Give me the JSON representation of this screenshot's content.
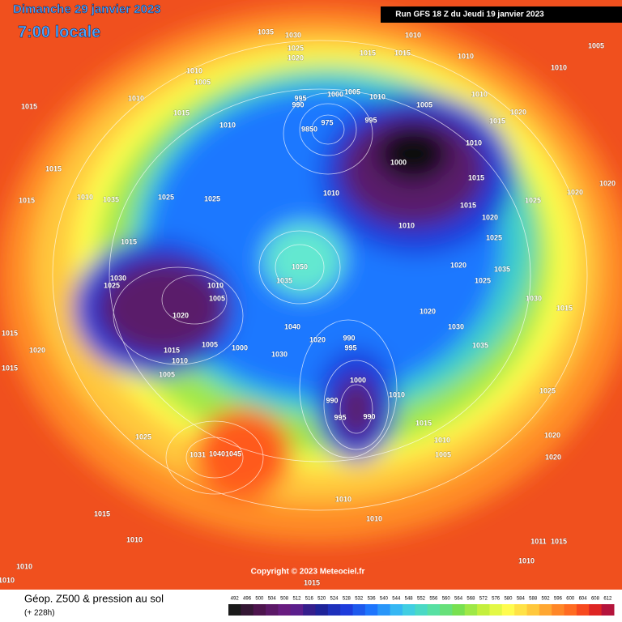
{
  "header": {
    "date": "Dimanche 29 janvier 2023",
    "time": "7:00 locale",
    "run": "Run GFS 18 Z du Jeudi 19 janvier 2023"
  },
  "copyright": "Copyright © 2023 Meteociel.fr",
  "footer": {
    "title": "Géop. Z500 & pression au sol",
    "lead": "(+ 228h)"
  },
  "colorbar": [
    492,
    496,
    500,
    504,
    508,
    512,
    516,
    520,
    524,
    528,
    532,
    536,
    540,
    544,
    548,
    552,
    556,
    560,
    564,
    568,
    572,
    576,
    580,
    584,
    588,
    592,
    596,
    600,
    604,
    608,
    612
  ],
  "isobar_labels": [
    "1035",
    "1030",
    "1010",
    "1025",
    "1020",
    "1015",
    "1015",
    "1010",
    "1010",
    "1005",
    "1015",
    "1010",
    "1005",
    "1010",
    "1015",
    "1010",
    "995",
    "990",
    "1000",
    "1005",
    "1010",
    "1005",
    "1010",
    "1020",
    "1015",
    "975",
    "9850",
    "995",
    "1010",
    "1000",
    "1015",
    "1015",
    "1015",
    "1010",
    "1035",
    "1025",
    "1025",
    "1010",
    "1020",
    "1020",
    "1015",
    "1025",
    "1010",
    "1020",
    "1025",
    "1015",
    "1020",
    "1035",
    "1050",
    "1035",
    "1030",
    "1025",
    "1010",
    "1005",
    "1025",
    "1030",
    "1015",
    "1020",
    "1020",
    "1040",
    "1030",
    "1020",
    "990",
    "995",
    "1015",
    "1015",
    "1005",
    "1000",
    "1010",
    "1020",
    "1035",
    "1030",
    "1000",
    "990",
    "995",
    "990",
    "1010",
    "1015",
    "1015",
    "1005",
    "1025",
    "1010",
    "1005",
    "1020",
    "1020",
    "1025",
    "1031",
    "1040",
    "1045",
    "1010",
    "1010",
    "1015",
    "1010",
    "1011",
    "1015",
    "1010",
    "1010",
    "1015",
    "1010"
  ]
}
